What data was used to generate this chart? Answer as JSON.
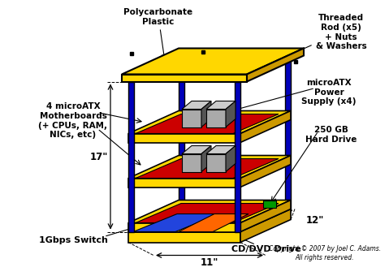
{
  "bg_color": "#ffffff",
  "gold": "#FFD700",
  "gold_dark": "#CC9900",
  "red": "#CC0000",
  "blue_pole": "#0000BB",
  "blue_switch": "#2244DD",
  "orange": "#FF6600",
  "green": "#009900",
  "gray_light": "#AAAAAA",
  "gray_mid": "#888888",
  "gray_dark": "#555555",
  "black": "#000000",
  "labels": {
    "top_plastic": "Polycarbonate\nPlastic",
    "threaded_rod": "Threaded\nRod (x5)\n+ Nuts\n& Washers",
    "motherboards": "4 microATX\nMotherboards\n(+ CPUs, RAM,\nNICs, etc)",
    "power_supply": "microATX\nPower\nSupply (x4)",
    "hard_drive": "250 GB\nHard Drive",
    "switch": "1Gbps Switch",
    "dvd": "CD/DVD Drive",
    "dim_17": "17\"",
    "dim_12": "12\"",
    "dim_11": "11\"",
    "copyright": "Copyright © 2007 by Joel C. Adams.\nAll rights reserved."
  }
}
